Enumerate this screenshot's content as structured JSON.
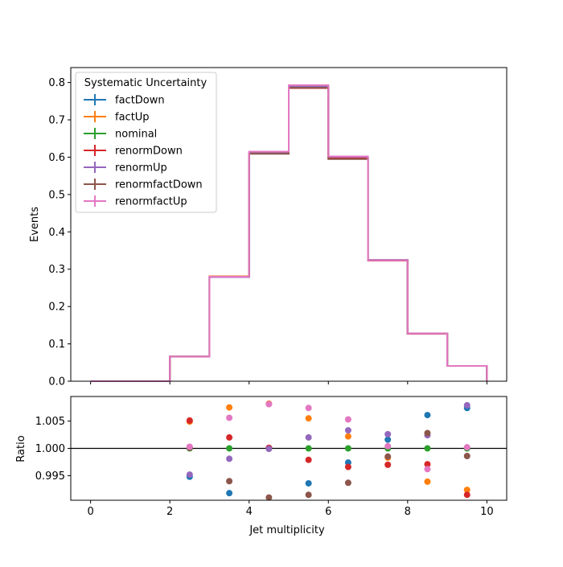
{
  "chart_data": {
    "type": "step",
    "legend_title": "Systematic Uncertainty",
    "legend_location": "upper-left",
    "series": [
      {
        "name": "factDown",
        "color": "#1f77b4"
      },
      {
        "name": "factUp",
        "color": "#ff7f0e"
      },
      {
        "name": "nominal",
        "color": "#2ca02c"
      },
      {
        "name": "renormDown",
        "color": "#d62728"
      },
      {
        "name": "renormUp",
        "color": "#9467bd"
      },
      {
        "name": "renormfactDown",
        "color": "#8c564b"
      },
      {
        "name": "renormfactUp",
        "color": "#e377c2"
      }
    ],
    "top_panel": {
      "ylabel": "Events",
      "xlim": [
        -0.5,
        10.5
      ],
      "ylim": [
        0,
        0.84
      ],
      "yticks": [
        0.0,
        0.1,
        0.2,
        0.3,
        0.4,
        0.5,
        0.6,
        0.7,
        0.8
      ],
      "ytick_labels": [
        "0.0",
        "0.1",
        "0.2",
        "0.3",
        "0.4",
        "0.5",
        "0.6",
        "0.7",
        "0.8"
      ],
      "bin_edges": [
        0,
        1,
        2,
        3,
        4,
        5,
        6,
        7,
        8,
        9,
        10
      ],
      "histograms": [
        {
          "series": "factDown",
          "values": [
            0.0,
            0.0,
            0.066,
            0.279,
            0.611,
            0.786,
            0.598,
            0.324,
            0.128,
            0.041
          ]
        },
        {
          "series": "factUp",
          "values": [
            0.0,
            0.0,
            0.066,
            0.281,
            0.61,
            0.791,
            0.6,
            0.324,
            0.127,
            0.041
          ]
        },
        {
          "series": "nominal",
          "values": [
            0.0,
            0.0,
            0.066,
            0.279,
            0.61,
            0.787,
            0.599,
            0.324,
            0.128,
            0.041
          ]
        },
        {
          "series": "renormDown",
          "values": [
            0.0,
            0.0,
            0.066,
            0.28,
            0.61,
            0.785,
            0.597,
            0.323,
            0.127,
            0.041
          ]
        },
        {
          "series": "renormUp",
          "values": [
            0.0,
            0.0,
            0.066,
            0.279,
            0.61,
            0.789,
            0.601,
            0.325,
            0.128,
            0.041
          ]
        },
        {
          "series": "renormfactDown",
          "values": [
            0.0,
            0.0,
            0.066,
            0.28,
            0.609,
            0.786,
            0.595,
            0.324,
            0.128,
            0.041
          ]
        },
        {
          "series": "renormfactUp",
          "values": [
            0.0,
            0.0,
            0.066,
            0.28,
            0.615,
            0.793,
            0.602,
            0.324,
            0.128,
            0.041
          ]
        }
      ]
    },
    "ratio_panel": {
      "ylabel": "Ratio",
      "xlabel": "Jet multiplicity",
      "xlim": [
        -0.5,
        10.5
      ],
      "ylim": [
        0.9905,
        1.0095
      ],
      "reference_line": 1.0,
      "xticks": [
        0,
        2,
        4,
        6,
        8,
        10
      ],
      "xtick_labels": [
        "0",
        "2",
        "4",
        "6",
        "8",
        "10"
      ],
      "yticks": [
        0.995,
        1.0,
        1.005
      ],
      "ytick_labels": [
        "0.995",
        "1.000",
        "1.005"
      ],
      "x": [
        2.5,
        3.5,
        4.5,
        5.5,
        6.5,
        7.5,
        8.5,
        9.5
      ],
      "points": [
        {
          "series": "factDown",
          "y": [
            0.9948,
            0.9918,
            1.0001,
            0.9936,
            0.9974,
            1.0016,
            1.0061,
            1.0074
          ]
        },
        {
          "series": "factUp",
          "y": [
            1.0049,
            1.0075,
            1.0082,
            1.0055,
            1.0022,
            0.9983,
            0.9939,
            0.9924
          ]
        },
        {
          "series": "nominal",
          "y": [
            1.0,
            1.0,
            1.0,
            1.0,
            1.0,
            1.0,
            1.0,
            1.0
          ]
        },
        {
          "series": "renormDown",
          "y": [
            1.0051,
            1.002,
            1.0001,
            0.9979,
            0.9966,
            0.997,
            0.9971,
            0.9915
          ]
        },
        {
          "series": "renormUp",
          "y": [
            0.9952,
            0.9981,
            0.9999,
            1.002,
            1.0033,
            1.0026,
            1.0024,
            1.0079
          ]
        },
        {
          "series": "renormfactDown",
          "y": [
            1.0001,
            0.994,
            0.991,
            0.9915,
            0.9937,
            0.9985,
            1.0028,
            0.9986
          ]
        },
        {
          "series": "renormfactUp",
          "y": [
            1.0003,
            1.0056,
            1.0081,
            1.0074,
            1.0053,
            1.0004,
            0.9962,
            1.0002
          ]
        }
      ]
    }
  }
}
